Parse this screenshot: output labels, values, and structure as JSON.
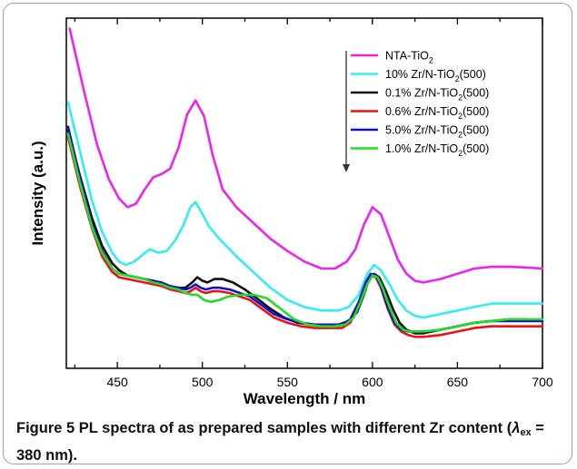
{
  "chart_data": {
    "type": "line",
    "xlabel": "Wavelength / nm",
    "ylabel": "Intensity (a.u.)",
    "xlim": [
      420,
      700
    ],
    "ylim": [
      0,
      100
    ],
    "x_ticks": [
      "450",
      "500",
      "550",
      "600",
      "650",
      "700"
    ],
    "y_ticks_labeled": false,
    "grid": false,
    "legend_position": "top-right",
    "legend_arrow": "down",
    "series": [
      {
        "name": "NTA-TiO",
        "name_sub": "2",
        "name_suffix": "",
        "color": "#ee22ee",
        "x": [
          422,
          430,
          438,
          445,
          451,
          456,
          461,
          466,
          471,
          476,
          481,
          486,
          491,
          496,
          501,
          506,
          512,
          520,
          530,
          540,
          550,
          560,
          570,
          578,
          585,
          590,
          595,
          600,
          605,
          610,
          615,
          620,
          625,
          630,
          640,
          650,
          660,
          670,
          680,
          690,
          700
        ],
        "y": [
          97,
          80,
          64,
          54,
          48.5,
          46,
          47,
          51,
          54.5,
          55.5,
          57,
          63,
          72.5,
          76.5,
          72,
          61,
          51,
          46,
          41.5,
          37,
          33.5,
          30.5,
          28.5,
          28.5,
          30.5,
          34,
          41,
          46,
          44,
          37.5,
          31,
          27,
          25,
          24.5,
          25.5,
          27,
          28.5,
          29,
          29,
          28.8,
          28.5
        ]
      },
      {
        "name": "10% Zr/N-TiO",
        "name_sub": "2",
        "name_suffix": "(500)",
        "color": "#33eeee",
        "x": [
          421,
          428,
          435,
          441,
          447,
          451,
          455,
          460,
          465,
          469,
          474,
          479,
          484,
          489,
          493,
          496,
          499,
          504,
          510,
          520,
          530,
          540,
          550,
          560,
          570,
          580,
          586,
          592,
          597,
          601,
          605,
          610,
          615,
          620,
          625,
          630,
          635,
          640,
          650,
          660,
          670,
          680,
          690,
          700
        ],
        "y": [
          76,
          62,
          48,
          39,
          33,
          30.5,
          29.5,
          30.5,
          32.5,
          34,
          33,
          33.5,
          36.5,
          41,
          46,
          47.5,
          45,
          40.5,
          37,
          32,
          27.5,
          23,
          19.5,
          17.5,
          16.5,
          16.5,
          17.5,
          21,
          27,
          29.5,
          28,
          24,
          19.5,
          16.5,
          15,
          14.5,
          15,
          15.5,
          16.5,
          17.5,
          18.5,
          18.5,
          18.5,
          18.5
        ]
      },
      {
        "name": "0.1% Zr/N-TiO",
        "name_sub": "2",
        "name_suffix": "(500)",
        "color": "#111111",
        "x": [
          421,
          428,
          435,
          441,
          447,
          451,
          456,
          461,
          466,
          471,
          476,
          481,
          486,
          490,
          494,
          497,
          500,
          503,
          507,
          512,
          518,
          525,
          532,
          540,
          548,
          556,
          564,
          572,
          580,
          586,
          591,
          595,
          598,
          601,
          604,
          608,
          612,
          616,
          620,
          625,
          630,
          640,
          650,
          660,
          670,
          680,
          690,
          700
        ],
        "y": [
          68,
          55,
          43,
          35,
          30,
          28,
          26.5,
          26,
          25.5,
          25,
          24,
          23,
          23,
          23,
          24.5,
          26,
          25,
          24.5,
          25.5,
          25.5,
          24.5,
          22.5,
          20,
          17,
          14.5,
          13,
          12.5,
          12.5,
          12.5,
          13.5,
          16,
          21,
          25.5,
          27,
          26,
          22,
          17,
          13,
          11,
          10,
          10,
          11,
          12,
          13,
          13.5,
          14,
          14,
          13.5
        ]
      },
      {
        "name": "0.6% Zr/N-TiO",
        "name_sub": "2",
        "name_suffix": "(500)",
        "color": "#ee1111",
        "x": [
          421,
          428,
          435,
          441,
          447,
          451,
          456,
          461,
          466,
          471,
          476,
          481,
          486,
          490,
          493,
          496,
          499,
          502,
          506,
          510,
          516,
          522,
          528,
          535,
          542,
          550,
          558,
          566,
          574,
          582,
          587,
          592,
          596,
          599,
          602,
          605,
          609,
          613,
          617,
          621,
          625,
          630,
          640,
          650,
          660,
          670,
          680,
          690,
          700
        ],
        "y": [
          66,
          52,
          40,
          32,
          27.5,
          26,
          25.5,
          25,
          24.5,
          24,
          23.5,
          22.5,
          22,
          21.5,
          22,
          23,
          22,
          21.5,
          22,
          22,
          21.5,
          20.5,
          19.5,
          17,
          14.5,
          13,
          12,
          11.5,
          11.5,
          11.5,
          13,
          18,
          23.5,
          26.5,
          26,
          23,
          17,
          12.5,
          10.5,
          9.5,
          9,
          9,
          9.5,
          10.5,
          11.5,
          12,
          12,
          12,
          12
        ]
      },
      {
        "name": "5.0% Zr/N-TiO",
        "name_sub": "2",
        "name_suffix": "(500)",
        "color": "#1111cc",
        "x": [
          421,
          428,
          435,
          441,
          447,
          451,
          456,
          461,
          466,
          471,
          476,
          481,
          486,
          490,
          493,
          496,
          499,
          502,
          506,
          510,
          516,
          522,
          528,
          535,
          542,
          550,
          558,
          566,
          574,
          582,
          587,
          592,
          596,
          599,
          602,
          605,
          609,
          613,
          617,
          621,
          625,
          630,
          640,
          650,
          660,
          670,
          680,
          690,
          700
        ],
        "y": [
          69,
          54.5,
          41.5,
          33.5,
          28.5,
          27,
          26.5,
          26,
          25.5,
          25,
          24.5,
          23.5,
          23,
          22.5,
          23,
          24,
          23,
          22.5,
          23,
          23,
          22.5,
          21.5,
          20.5,
          18,
          15.5,
          14,
          13,
          12.5,
          12.5,
          12.5,
          14,
          19,
          24.5,
          27,
          26.5,
          23.5,
          17.5,
          13,
          11,
          10.5,
          10.5,
          10.5,
          11,
          12,
          13,
          13.5,
          13.5,
          13.5,
          13.5
        ]
      },
      {
        "name": "1.0% Zr/N-TiO",
        "name_sub": "2",
        "name_suffix": "(500)",
        "color": "#22dd22",
        "x": [
          421,
          428,
          435,
          441,
          447,
          451,
          456,
          461,
          466,
          471,
          476,
          481,
          486,
          490,
          494,
          497,
          501,
          505,
          510,
          515,
          522,
          530,
          538,
          546,
          554,
          562,
          570,
          578,
          584,
          589,
          593,
          597,
          600,
          603,
          606,
          610,
          614,
          618,
          622,
          626,
          630,
          640,
          650,
          660,
          670,
          680,
          690,
          700
        ],
        "y": [
          67,
          53,
          40.5,
          33,
          28.5,
          27,
          26.5,
          26,
          25.5,
          24.5,
          24,
          23,
          22.5,
          21.5,
          21,
          21,
          19.5,
          19,
          19.5,
          20.5,
          21,
          21,
          20,
          17,
          14,
          12.5,
          12,
          12,
          12.5,
          14.5,
          19,
          24,
          26.5,
          26,
          23,
          17.5,
          13,
          11,
          10.5,
          10.5,
          10.5,
          11,
          12,
          13,
          13.5,
          14,
          14,
          14
        ]
      }
    ]
  },
  "caption": {
    "label": "Figure 5",
    "text_before": " PL spectra of as prepared samples with different Zr content (",
    "lambda": "λ",
    "lambda_sub": "ex",
    "text_after": " = 380 nm)."
  }
}
